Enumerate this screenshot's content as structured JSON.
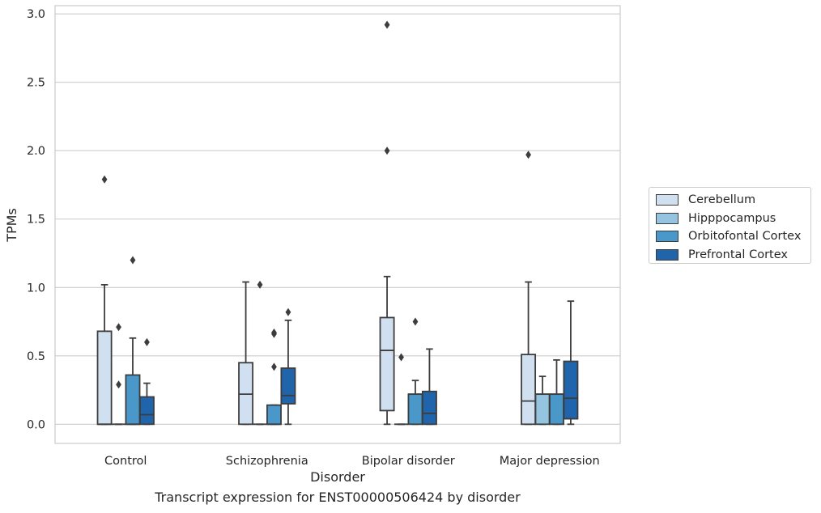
{
  "caption": "Transcript expression for ENST00000506424 by disorder",
  "colors": {
    "Cerebellum": "#d0e0f1",
    "Hipppocampus": "#94c4df",
    "Orbitofontal Cortex": "#4a98c9",
    "Prefrontal Cortex": "#2064ac"
  },
  "chart_data": {
    "type": "boxplot",
    "xlabel": "Disorder",
    "ylabel": "TPMs",
    "ylim": [
      -0.14,
      3.06
    ],
    "yticks": [
      "0.0",
      "0.5",
      "1.0",
      "1.5",
      "2.0",
      "2.5",
      "3.0"
    ],
    "grid": "horizontal",
    "legend_position": "outside-right",
    "categories": [
      "Control",
      "Schizophrenia",
      "Bipolar disorder",
      "Major depression"
    ],
    "series": [
      {
        "name": "Cerebellum",
        "boxes": [
          {
            "q1": 0.0,
            "median": 0.0,
            "q3": 0.68,
            "whislo": 0.0,
            "whishi": 1.02,
            "fliers": [
              1.79
            ]
          },
          {
            "q1": 0.0,
            "median": 0.22,
            "q3": 0.45,
            "whislo": 0.0,
            "whishi": 1.04,
            "fliers": []
          },
          {
            "q1": 0.1,
            "median": 0.54,
            "q3": 0.78,
            "whislo": 0.0,
            "whishi": 1.08,
            "fliers": [
              2.0,
              2.92
            ]
          },
          {
            "q1": 0.0,
            "median": 0.17,
            "q3": 0.51,
            "whislo": 0.0,
            "whishi": 1.04,
            "fliers": [
              1.97
            ]
          }
        ]
      },
      {
        "name": "Hipppocampus",
        "boxes": [
          {
            "q1": 0.0,
            "median": 0.0,
            "q3": 0.0,
            "whislo": 0.0,
            "whishi": 0.0,
            "fliers": [
              0.29,
              0.71
            ]
          },
          {
            "q1": 0.0,
            "median": 0.0,
            "q3": 0.0,
            "whislo": 0.0,
            "whishi": 0.0,
            "fliers": [
              1.02
            ]
          },
          {
            "q1": 0.0,
            "median": 0.0,
            "q3": 0.0,
            "whislo": 0.0,
            "whishi": 0.0,
            "fliers": [
              0.49
            ]
          },
          {
            "q1": 0.0,
            "median": 0.22,
            "q3": 0.22,
            "whislo": 0.0,
            "whishi": 0.35,
            "fliers": []
          }
        ]
      },
      {
        "name": "Orbitofontal Cortex",
        "boxes": [
          {
            "q1": 0.0,
            "median": 0.0,
            "q3": 0.36,
            "whislo": 0.0,
            "whishi": 0.63,
            "fliers": [
              1.2
            ]
          },
          {
            "q1": 0.0,
            "median": 0.0,
            "q3": 0.14,
            "whislo": 0.0,
            "whishi": 0.14,
            "fliers": [
              0.42,
              0.66,
              0.67
            ]
          },
          {
            "q1": 0.0,
            "median": 0.22,
            "q3": 0.22,
            "whislo": 0.0,
            "whishi": 0.32,
            "fliers": [
              0.75
            ]
          },
          {
            "q1": 0.0,
            "median": 0.22,
            "q3": 0.22,
            "whislo": 0.0,
            "whishi": 0.47,
            "fliers": []
          }
        ]
      },
      {
        "name": "Prefrontal Cortex",
        "boxes": [
          {
            "q1": 0.0,
            "median": 0.07,
            "q3": 0.2,
            "whislo": 0.0,
            "whishi": 0.3,
            "fliers": [
              0.6
            ]
          },
          {
            "q1": 0.15,
            "median": 0.21,
            "q3": 0.41,
            "whislo": 0.0,
            "whishi": 0.76,
            "fliers": [
              0.82
            ]
          },
          {
            "q1": 0.0,
            "median": 0.08,
            "q3": 0.24,
            "whislo": 0.0,
            "whishi": 0.55,
            "fliers": []
          },
          {
            "q1": 0.04,
            "median": 0.19,
            "q3": 0.46,
            "whislo": 0.0,
            "whishi": 0.9,
            "fliers": []
          }
        ]
      }
    ]
  }
}
